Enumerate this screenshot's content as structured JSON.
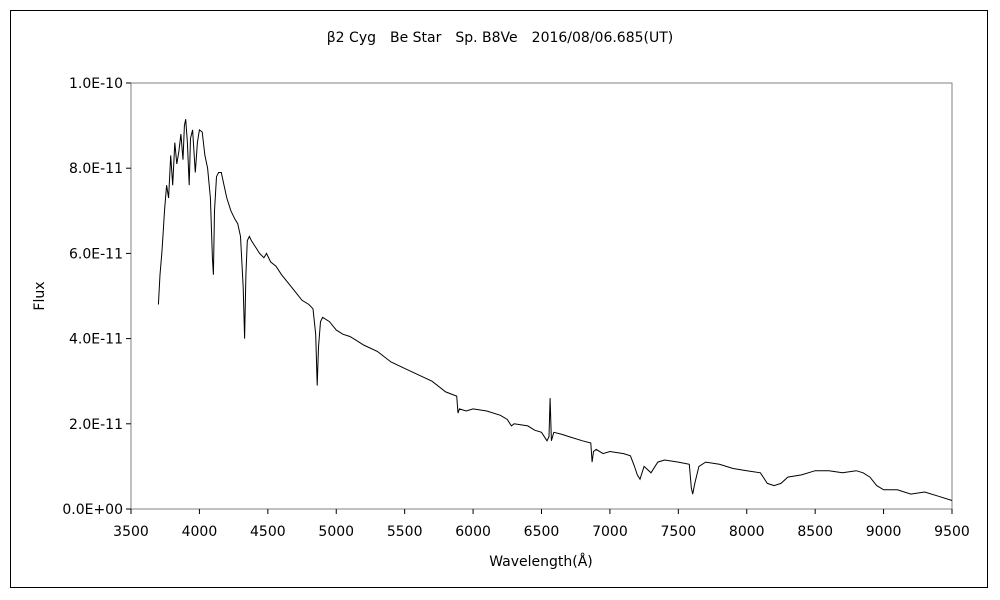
{
  "chart_data": {
    "type": "line",
    "title": "β2 Cyg　Be Star　Sp. B8Ve　2016/08/06.685(UT)",
    "xlabel": "Wavelength(Å)",
    "ylabel": "Flux",
    "xlim": [
      3500,
      9500
    ],
    "ylim": [
      0,
      1e-10
    ],
    "xticks": [
      3500,
      4000,
      4500,
      5000,
      5500,
      6000,
      6500,
      7000,
      7500,
      8000,
      8500,
      9000,
      9500
    ],
    "xtick_labels": [
      "3500",
      "4000",
      "4500",
      "5000",
      "5500",
      "6000",
      "6500",
      "7000",
      "7500",
      "8000",
      "8500",
      "9000",
      "9500"
    ],
    "yticks": [
      0,
      2e-11,
      4e-11,
      6e-11,
      8e-11,
      1e-10
    ],
    "ytick_labels": [
      "0.0E+00",
      "2.0E-11",
      "4.0E-11",
      "6.0E-11",
      "8.0E-11",
      "1.0E-10"
    ],
    "grid": false,
    "legend": "none",
    "line_color": "#000000",
    "series": [
      {
        "x": [
          3700,
          3712,
          3725,
          3735,
          3745,
          3760,
          3775,
          3790,
          3805,
          3820,
          3835,
          3850,
          3865,
          3880,
          3890,
          3900,
          3912,
          3925,
          3935,
          3950,
          3970,
          3985,
          4000,
          4020,
          4040,
          4060,
          4080,
          4095,
          4102,
          4110,
          4125,
          4140,
          4160,
          4180,
          4200,
          4230,
          4260,
          4280,
          4300,
          4320,
          4330,
          4340,
          4350,
          4365,
          4380,
          4400,
          4420,
          4440,
          4471,
          4490,
          4520,
          4560,
          4600,
          4650,
          4700,
          4750,
          4800,
          4830,
          4850,
          4861,
          4870,
          4885,
          4900,
          4950,
          5000,
          5050,
          5100,
          5150,
          5200,
          5300,
          5400,
          5500,
          5600,
          5700,
          5800,
          5880,
          5890,
          5900,
          5950,
          6000,
          6100,
          6200,
          6250,
          6280,
          6300,
          6400,
          6450,
          6500,
          6540,
          6555,
          6563,
          6572,
          6590,
          6650,
          6700,
          6800,
          6860,
          6870,
          6880,
          6900,
          6950,
          7000,
          7100,
          7150,
          7180,
          7200,
          7220,
          7250,
          7300,
          7350,
          7400,
          7500,
          7580,
          7595,
          7605,
          7620,
          7650,
          7700,
          7800,
          7900,
          8000,
          8100,
          8150,
          8200,
          8250,
          8300,
          8400,
          8500,
          8600,
          8700,
          8800,
          8850,
          8900,
          8950,
          9000,
          9100,
          9200,
          9300,
          9400,
          9500
        ],
        "y": [
          4.8e-11,
          5.5e-11,
          6e-11,
          6.5e-11,
          7e-11,
          7.6e-11,
          7.3e-11,
          8.3e-11,
          7.6e-11,
          8.6e-11,
          8.1e-11,
          8.4e-11,
          8.8e-11,
          8.2e-11,
          9e-11,
          9.15e-11,
          8.6e-11,
          7.6e-11,
          8.7e-11,
          8.9e-11,
          7.9e-11,
          8.6e-11,
          8.9e-11,
          8.85e-11,
          8.3e-11,
          8e-11,
          7.3e-11,
          5.9e-11,
          5.5e-11,
          7e-11,
          7.8e-11,
          7.9e-11,
          7.9e-11,
          7.6e-11,
          7.3e-11,
          7e-11,
          6.8e-11,
          6.7e-11,
          6.4e-11,
          5.2e-11,
          4e-11,
          5.5e-11,
          6.3e-11,
          6.4e-11,
          6.3e-11,
          6.2e-11,
          6.1e-11,
          6e-11,
          5.9e-11,
          6e-11,
          5.8e-11,
          5.7e-11,
          5.5e-11,
          5.3e-11,
          5.1e-11,
          4.9e-11,
          4.8e-11,
          4.7e-11,
          4.1e-11,
          2.9e-11,
          3.8e-11,
          4.4e-11,
          4.5e-11,
          4.4e-11,
          4.2e-11,
          4.1e-11,
          4.05e-11,
          3.95e-11,
          3.85e-11,
          3.7e-11,
          3.45e-11,
          3.3e-11,
          3.15e-11,
          3e-11,
          2.75e-11,
          2.65e-11,
          2.25e-11,
          2.35e-11,
          2.3e-11,
          2.35e-11,
          2.3e-11,
          2.2e-11,
          2.1e-11,
          1.95e-11,
          2e-11,
          1.95e-11,
          1.85e-11,
          1.8e-11,
          1.6e-11,
          1.7e-11,
          2.6e-11,
          1.6e-11,
          1.8e-11,
          1.75e-11,
          1.7e-11,
          1.6e-11,
          1.55e-11,
          1.1e-11,
          1.35e-11,
          1.4e-11,
          1.3e-11,
          1.35e-11,
          1.3e-11,
          1.25e-11,
          1e-11,
          8e-12,
          7e-12,
          1e-11,
          8.5e-12,
          1.1e-11,
          1.15e-11,
          1.1e-11,
          1.05e-11,
          5e-12,
          3.5e-12,
          6e-12,
          1e-11,
          1.1e-11,
          1.05e-11,
          9.5e-12,
          9e-12,
          8.5e-12,
          6e-12,
          5.5e-12,
          6e-12,
          7.5e-12,
          8e-12,
          9e-12,
          9e-12,
          8.5e-12,
          9e-12,
          8.5e-12,
          7.5e-12,
          5.5e-12,
          4.5e-12,
          4.5e-12,
          3.5e-12,
          4e-12,
          3e-12,
          2e-12
        ]
      }
    ]
  }
}
